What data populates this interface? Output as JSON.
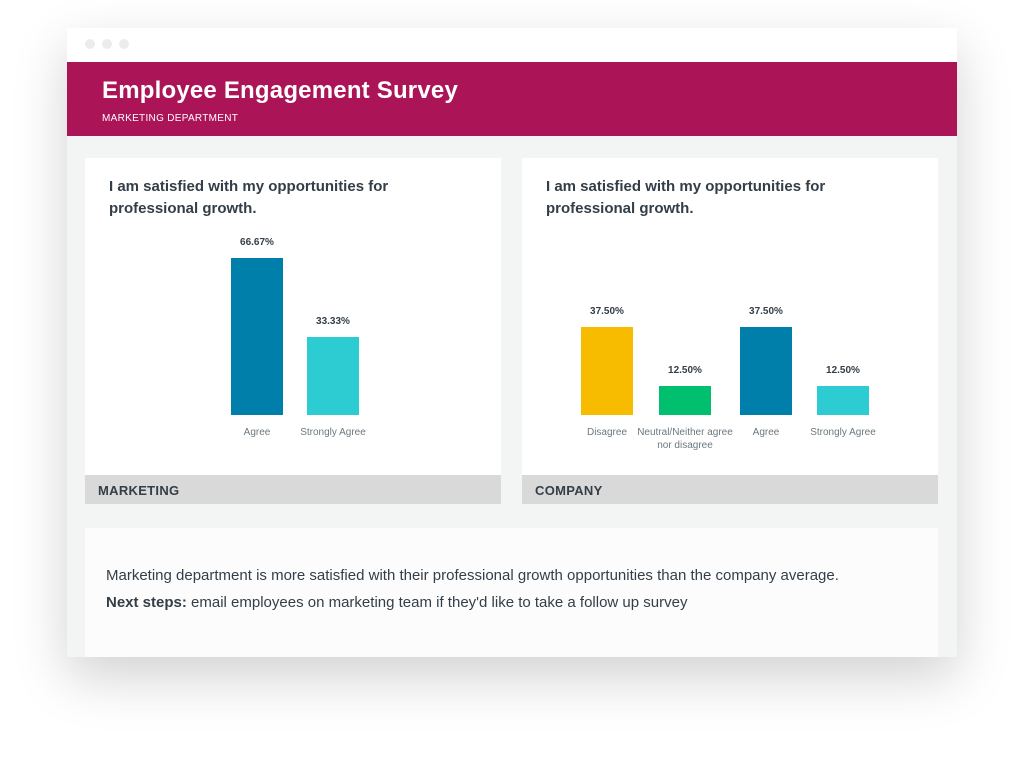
{
  "header": {
    "title": "Employee Engagement Survey",
    "subtitle": "MARKETING DEPARTMENT"
  },
  "chart_data": [
    {
      "type": "bar",
      "title": "I am satisfied with my opportunities for professional growth.",
      "group": "MARKETING",
      "categories": [
        "Agree",
        "Strongly Agree"
      ],
      "values": [
        66.67,
        33.33
      ],
      "labels": [
        "66.67%",
        "33.33%"
      ],
      "colors": [
        "#007faa",
        "#2dccd3"
      ]
    },
    {
      "type": "bar",
      "title": "I am satisfied with my opportunities for professional growth.",
      "group": "COMPANY",
      "categories": [
        "Disagree",
        "Neutral/Neither agree nor disagree",
        "Agree",
        "Strongly Agree"
      ],
      "values": [
        37.5,
        12.5,
        37.5,
        12.5
      ],
      "labels": [
        "37.50%",
        "12.50%",
        "37.50%",
        "12.50%"
      ],
      "colors": [
        "#f7bc00",
        "#00bf6f",
        "#007faa",
        "#2dccd3"
      ]
    }
  ],
  "summary": {
    "text": "Marketing department is more satisfied with their professional growth opportunities than the company average.",
    "next_label": "Next steps:",
    "next_text": " email employees on marketing team if they'd like to take a follow up survey"
  }
}
